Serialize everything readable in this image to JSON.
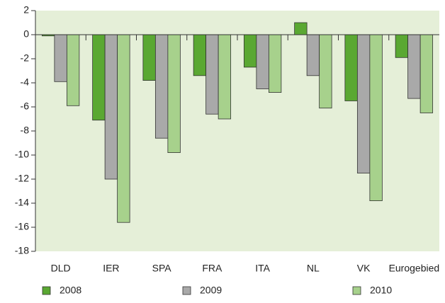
{
  "chart_data": {
    "type": "bar",
    "categories": [
      "DLD",
      "IER",
      "SPA",
      "FRA",
      "ITA",
      "NL",
      "VK",
      "Eurogebied"
    ],
    "series": [
      {
        "name": "2008",
        "color": "#5aa832",
        "values": [
          -0.1,
          -7.1,
          -3.8,
          -3.4,
          -2.7,
          1.0,
          -5.5,
          -1.9
        ]
      },
      {
        "name": "2009",
        "color": "#a9a9a9",
        "values": [
          -3.9,
          -12.0,
          -8.6,
          -6.6,
          -4.5,
          -3.4,
          -11.5,
          -5.3
        ]
      },
      {
        "name": "2010",
        "color": "#a7d18c",
        "values": [
          -5.9,
          -15.6,
          -9.8,
          -7.0,
          -4.8,
          -6.1,
          -13.8,
          -6.5
        ]
      }
    ],
    "ylim": [
      -18,
      2
    ],
    "yticks": [
      2,
      0,
      -2,
      -4,
      -6,
      -8,
      -10,
      -12,
      -14,
      -16,
      -18
    ],
    "background": "#e5efd8"
  }
}
